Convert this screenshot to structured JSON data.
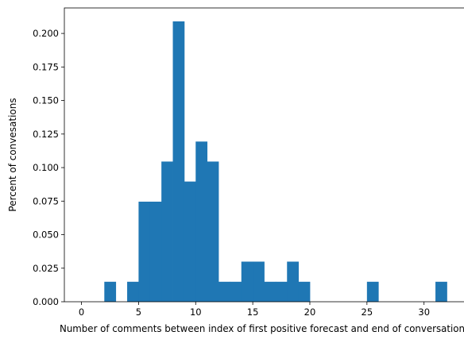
{
  "chart_data": {
    "type": "histogram",
    "title": "",
    "xlabel": "Number of comments between index of first positive forecast and end of conversation",
    "ylabel": "Percent of convesations",
    "xlim": [
      -1.5,
      33.5
    ],
    "ylim": [
      0,
      0.219
    ],
    "x_ticks": [
      0,
      5,
      10,
      15,
      20,
      25,
      30
    ],
    "y_ticks": [
      0.0,
      0.025,
      0.05,
      0.075,
      0.1,
      0.125,
      0.15,
      0.175,
      0.2
    ],
    "y_tick_labels": [
      "0.000",
      "0.025",
      "0.050",
      "0.075",
      "0.100",
      "0.125",
      "0.150",
      "0.175",
      "0.200"
    ],
    "bar_color": "#1f77b4",
    "bins": [
      {
        "x0": 2,
        "x1": 3,
        "value": 0.0149
      },
      {
        "x0": 4,
        "x1": 5,
        "value": 0.0149
      },
      {
        "x0": 5,
        "x1": 6,
        "value": 0.0746
      },
      {
        "x0": 6,
        "x1": 7,
        "value": 0.0746
      },
      {
        "x0": 7,
        "x1": 8,
        "value": 0.1045
      },
      {
        "x0": 8,
        "x1": 9,
        "value": 0.209
      },
      {
        "x0": 9,
        "x1": 10,
        "value": 0.0896
      },
      {
        "x0": 10,
        "x1": 11,
        "value": 0.1194
      },
      {
        "x0": 11,
        "x1": 12,
        "value": 0.1045
      },
      {
        "x0": 12,
        "x1": 13,
        "value": 0.0149
      },
      {
        "x0": 13,
        "x1": 14,
        "value": 0.0149
      },
      {
        "x0": 14,
        "x1": 15,
        "value": 0.0299
      },
      {
        "x0": 15,
        "x1": 16,
        "value": 0.0299
      },
      {
        "x0": 16,
        "x1": 17,
        "value": 0.0149
      },
      {
        "x0": 17,
        "x1": 18,
        "value": 0.0149
      },
      {
        "x0": 18,
        "x1": 19,
        "value": 0.0299
      },
      {
        "x0": 19,
        "x1": 20,
        "value": 0.0149
      },
      {
        "x0": 25,
        "x1": 26,
        "value": 0.0149
      },
      {
        "x0": 31,
        "x1": 32,
        "value": 0.0149
      }
    ],
    "grid": false,
    "legend": "none"
  }
}
